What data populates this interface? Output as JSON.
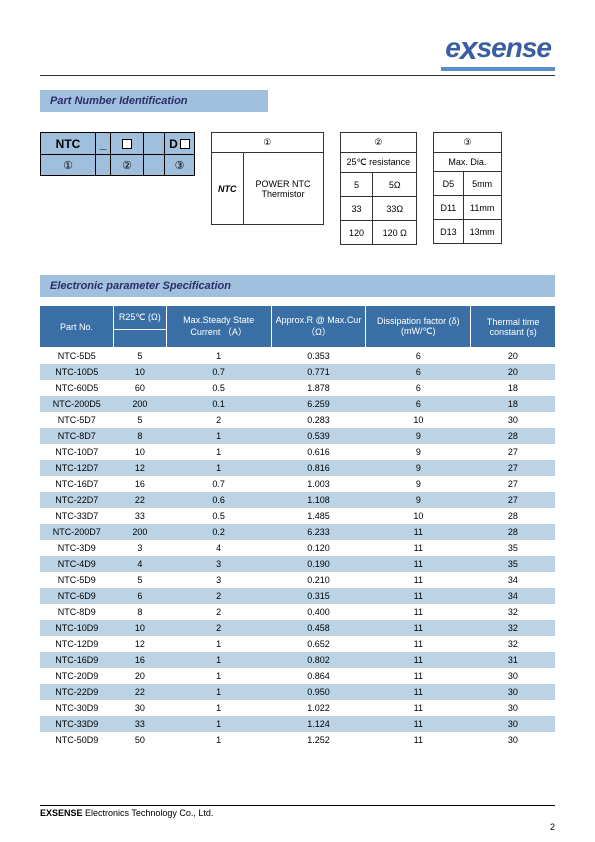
{
  "logo": {
    "text_pre": "e",
    "x": "x",
    "text_post": "sense"
  },
  "section_pni": "Part Number Identification",
  "schematic": {
    "top": {
      "ntc": "NTC",
      "underscore": "_",
      "d": "D"
    },
    "bottom": {
      "c1": "①",
      "c2": "②",
      "c3": "③"
    }
  },
  "table1": {
    "header": "①",
    "ntc": "NTC",
    "desc": "POWER NTC Thermistor"
  },
  "table2": {
    "header": "②",
    "sub": "25℃ resistance",
    "rows": [
      {
        "a": "5",
        "b": "5Ω"
      },
      {
        "a": "33",
        "b": "33Ω"
      },
      {
        "a": "120",
        "b": "120 Ω"
      }
    ]
  },
  "table3": {
    "header": "③",
    "sub": "Max. Dia.",
    "rows": [
      {
        "a": "D5",
        "b": "5mm"
      },
      {
        "a": "D11",
        "b": "11mm"
      },
      {
        "a": "D13",
        "b": "13mm"
      }
    ]
  },
  "section_spec": "Electronic parameter Specification",
  "spec_headers": {
    "part": "Part No.",
    "r25": "R25℃ (Ω)",
    "current": "Max.Steady State Current （A）",
    "approx": "Approx.R @ Max.Cur （Ω）",
    "diss": "Dissipation factor (δ)(mW/℃)",
    "thermal": "Thermal time constant (s)"
  },
  "spec_rows": [
    {
      "pn": "NTC-5D5",
      "r25": "5",
      "cur": "1",
      "ar": "0.353",
      "df": "6",
      "tc": "20",
      "alt": false
    },
    {
      "pn": "NTC-10D5",
      "r25": "10",
      "cur": "0.7",
      "ar": "0.771",
      "df": "6",
      "tc": "20",
      "alt": true
    },
    {
      "pn": "NTC-60D5",
      "r25": "60",
      "cur": "0.5",
      "ar": "1.878",
      "df": "6",
      "tc": "18",
      "alt": false
    },
    {
      "pn": "NTC-200D5",
      "r25": "200",
      "cur": "0.1",
      "ar": "6.259",
      "df": "6",
      "tc": "18",
      "alt": true
    },
    {
      "pn": "NTC-5D7",
      "r25": "5",
      "cur": "2",
      "ar": "0.283",
      "df": "10",
      "tc": "30",
      "alt": false
    },
    {
      "pn": "NTC-8D7",
      "r25": "8",
      "cur": "1",
      "ar": "0.539",
      "df": "9",
      "tc": "28",
      "alt": true
    },
    {
      "pn": "NTC-10D7",
      "r25": "10",
      "cur": "1",
      "ar": "0.616",
      "df": "9",
      "tc": "27",
      "alt": false
    },
    {
      "pn": "NTC-12D7",
      "r25": "12",
      "cur": "1",
      "ar": "0.816",
      "df": "9",
      "tc": "27",
      "alt": true
    },
    {
      "pn": "NTC-16D7",
      "r25": "16",
      "cur": "0.7",
      "ar": "1.003",
      "df": "9",
      "tc": "27",
      "alt": false
    },
    {
      "pn": "NTC-22D7",
      "r25": "22",
      "cur": "0.6",
      "ar": "1.108",
      "df": "9",
      "tc": "27",
      "alt": true
    },
    {
      "pn": "NTC-33D7",
      "r25": "33",
      "cur": "0.5",
      "ar": "1.485",
      "df": "10",
      "tc": "28",
      "alt": false
    },
    {
      "pn": "NTC-200D7",
      "r25": "200",
      "cur": "0.2",
      "ar": "6.233",
      "df": "11",
      "tc": "28",
      "alt": true
    },
    {
      "pn": "NTC-3D9",
      "r25": "3",
      "cur": "4",
      "ar": "0.120",
      "df": "11",
      "tc": "35",
      "alt": false
    },
    {
      "pn": "NTC-4D9",
      "r25": "4",
      "cur": "3",
      "ar": "0.190",
      "df": "11",
      "tc": "35",
      "alt": true
    },
    {
      "pn": "NTC-5D9",
      "r25": "5",
      "cur": "3",
      "ar": "0.210",
      "df": "11",
      "tc": "34",
      "alt": false
    },
    {
      "pn": "NTC-6D9",
      "r25": "6",
      "cur": "2",
      "ar": "0.315",
      "df": "11",
      "tc": "34",
      "alt": true
    },
    {
      "pn": "NTC-8D9",
      "r25": "8",
      "cur": "2",
      "ar": "0.400",
      "df": "11",
      "tc": "32",
      "alt": false
    },
    {
      "pn": "NTC-10D9",
      "r25": "10",
      "cur": "2",
      "ar": "0.458",
      "df": "11",
      "tc": "32",
      "alt": true
    },
    {
      "pn": "NTC-12D9",
      "r25": "12",
      "cur": "1",
      "ar": "0.652",
      "df": "11",
      "tc": "32",
      "alt": false
    },
    {
      "pn": "NTC-16D9",
      "r25": "16",
      "cur": "1",
      "ar": "0.802",
      "df": "11",
      "tc": "31",
      "alt": true
    },
    {
      "pn": "NTC-20D9",
      "r25": "20",
      "cur": "1",
      "ar": "0.864",
      "df": "11",
      "tc": "30",
      "alt": false
    },
    {
      "pn": "NTC-22D9",
      "r25": "22",
      "cur": "1",
      "ar": "0.950",
      "df": "11",
      "tc": "30",
      "alt": true
    },
    {
      "pn": "NTC-30D9",
      "r25": "30",
      "cur": "1",
      "ar": "1.022",
      "df": "11",
      "tc": "30",
      "alt": false
    },
    {
      "pn": "NTC-33D9",
      "r25": "33",
      "cur": "1",
      "ar": "1.124",
      "df": "11",
      "tc": "30",
      "alt": true
    },
    {
      "pn": "NTC-50D9",
      "r25": "50",
      "cur": "1",
      "ar": "1.252",
      "df": "11",
      "tc": "30",
      "alt": false
    }
  ],
  "footer": {
    "company": "EXSENSE",
    "rest": " Electronics Technology Co., Ltd."
  },
  "page_number": "2",
  "colors": {
    "header_bg": "#3a6fa5",
    "alt_row": "#bcd3e6",
    "section_bg": "#9fbfdd",
    "logo_color": "#3a5fa0"
  }
}
